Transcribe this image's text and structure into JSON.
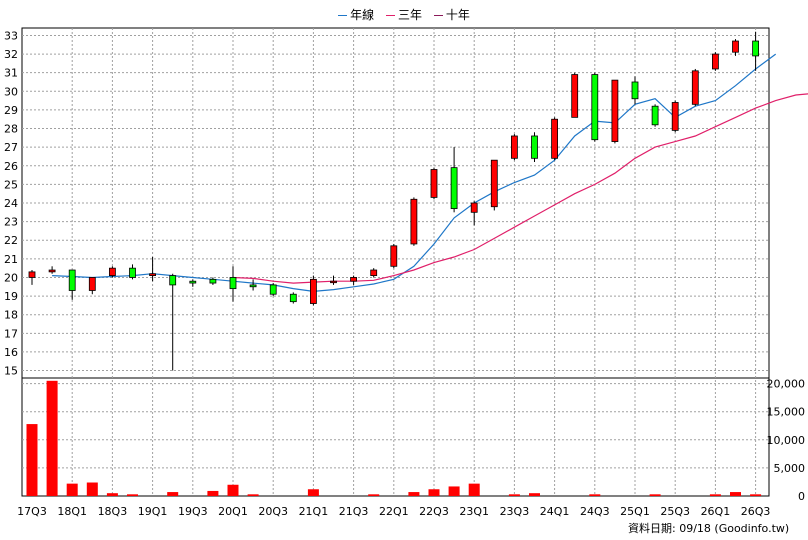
{
  "legend": [
    {
      "label": "年線",
      "color": "#1f77c8"
    },
    {
      "label": "三年",
      "color": "#e0206a"
    },
    {
      "label": "十年",
      "color": "#8b1a5a"
    }
  ],
  "source_note": "資料日期: 09/18  (Goodinfo.tw)",
  "chart_data": {
    "type": "candlestick",
    "price_axis": {
      "ylim": [
        14.6,
        33.4
      ],
      "ticks": [
        15,
        16,
        17,
        18,
        19,
        20,
        21,
        22,
        23,
        24,
        25,
        26,
        27,
        28,
        29,
        30,
        31,
        32,
        33
      ],
      "grid": true
    },
    "volume_axis": {
      "ylim": [
        0,
        21000
      ],
      "ticks": [
        0,
        5000,
        10000,
        15000,
        20000
      ],
      "tick_labels": [
        "0",
        "5,000",
        "10,000",
        "15,000",
        "20,000"
      ],
      "position": "right"
    },
    "x_tick_labels": [
      "17Q3",
      "18Q1",
      "18Q3",
      "19Q1",
      "19Q3",
      "20Q1",
      "20Q3",
      "21Q1",
      "21Q3",
      "22Q1",
      "22Q3",
      "23Q1",
      "23Q3",
      "24Q1",
      "24Q3",
      "25Q1",
      "25Q3",
      "26Q1",
      "26Q3"
    ],
    "candle_colors": {
      "up": "#ff0000",
      "down": "#00ff00",
      "outline": "#000000"
    },
    "volume_color": "#ff0000",
    "candles": [
      {
        "o": 20.0,
        "h": 20.4,
        "l": 19.6,
        "c": 20.3
      },
      {
        "o": 20.3,
        "h": 20.6,
        "l": 20.2,
        "c": 20.4
      },
      {
        "o": 20.4,
        "h": 20.4,
        "l": 18.8,
        "c": 19.3
      },
      {
        "o": 19.3,
        "h": 20.0,
        "l": 19.1,
        "c": 20.0
      },
      {
        "o": 20.1,
        "h": 20.6,
        "l": 20.0,
        "c": 20.5
      },
      {
        "o": 20.5,
        "h": 20.7,
        "l": 19.9,
        "c": 20.0
      },
      {
        "o": 20.1,
        "h": 21.1,
        "l": 19.8,
        "c": 20.2
      },
      {
        "o": 20.1,
        "h": 20.2,
        "l": 15.0,
        "c": 19.6
      },
      {
        "o": 19.8,
        "h": 19.9,
        "l": 19.5,
        "c": 19.7
      },
      {
        "o": 19.9,
        "h": 20.0,
        "l": 19.6,
        "c": 19.7
      },
      {
        "o": 20.0,
        "h": 20.6,
        "l": 18.7,
        "c": 19.4
      },
      {
        "o": 19.6,
        "h": 19.9,
        "l": 19.3,
        "c": 19.5
      },
      {
        "o": 19.6,
        "h": 19.7,
        "l": 19.0,
        "c": 19.1
      },
      {
        "o": 19.1,
        "h": 19.2,
        "l": 18.6,
        "c": 18.7
      },
      {
        "o": 18.6,
        "h": 20.1,
        "l": 18.5,
        "c": 19.9
      },
      {
        "o": 19.8,
        "h": 20.1,
        "l": 19.6,
        "c": 19.8
      },
      {
        "o": 19.8,
        "h": 20.1,
        "l": 19.6,
        "c": 20.0
      },
      {
        "o": 20.1,
        "h": 20.5,
        "l": 20.0,
        "c": 20.4
      },
      {
        "o": 20.6,
        "h": 21.8,
        "l": 20.5,
        "c": 21.7
      },
      {
        "o": 21.8,
        "h": 24.3,
        "l": 21.7,
        "c": 24.2
      },
      {
        "o": 24.3,
        "h": 25.9,
        "l": 24.2,
        "c": 25.8
      },
      {
        "o": 25.9,
        "h": 27.0,
        "l": 23.5,
        "c": 23.7
      },
      {
        "o": 23.5,
        "h": 24.1,
        "l": 22.8,
        "c": 24.0
      },
      {
        "o": 23.8,
        "h": 26.3,
        "l": 23.6,
        "c": 26.3
      },
      {
        "o": 26.4,
        "h": 27.7,
        "l": 26.3,
        "c": 27.6
      },
      {
        "o": 27.6,
        "h": 27.8,
        "l": 26.2,
        "c": 26.4
      },
      {
        "o": 26.4,
        "h": 28.6,
        "l": 26.3,
        "c": 28.5
      },
      {
        "o": 28.6,
        "h": 31.0,
        "l": 28.6,
        "c": 30.9
      },
      {
        "o": 30.9,
        "h": 31.0,
        "l": 27.3,
        "c": 27.4
      },
      {
        "o": 27.3,
        "h": 30.6,
        "l": 27.2,
        "c": 30.6
      },
      {
        "o": 30.5,
        "h": 30.8,
        "l": 29.3,
        "c": 29.6
      },
      {
        "o": 29.2,
        "h": 29.3,
        "l": 28.1,
        "c": 28.2
      },
      {
        "o": 27.9,
        "h": 29.5,
        "l": 27.8,
        "c": 29.4
      },
      {
        "o": 29.3,
        "h": 31.2,
        "l": 29.2,
        "c": 31.1
      },
      {
        "o": 31.2,
        "h": 32.1,
        "l": 31.1,
        "c": 32.0
      },
      {
        "o": 32.1,
        "h": 32.8,
        "l": 31.9,
        "c": 32.7
      },
      {
        "o": 32.7,
        "h": 33.2,
        "l": 31.1,
        "c": 31.9
      }
    ],
    "volumes": [
      12800,
      20500,
      2200,
      2400,
      500,
      300,
      0,
      700,
      0,
      900,
      2000,
      300,
      0,
      0,
      1200,
      0,
      0,
      300,
      0,
      700,
      1200,
      1700,
      2200,
      0,
      300,
      500,
      0,
      0,
      300,
      0,
      0,
      300,
      0,
      0,
      300,
      700,
      300
    ],
    "series": [
      {
        "name": "年線",
        "color": "#1f77c8",
        "start_index": 1,
        "values": [
          20.1,
          20.05,
          20.0,
          20.05,
          20.1,
          20.2,
          20.1,
          20.0,
          19.9,
          19.8,
          19.7,
          19.6,
          19.4,
          19.25,
          19.35,
          19.5,
          19.65,
          19.9,
          20.6,
          21.8,
          23.2,
          24.0,
          24.6,
          25.1,
          25.5,
          26.3,
          27.6,
          28.4,
          28.3,
          29.3,
          29.6,
          28.6,
          29.2,
          29.5,
          30.3,
          31.2,
          32.0
        ]
      },
      {
        "name": "三年",
        "color": "#e0206a",
        "start_index": 10,
        "values": [
          20.0,
          19.95,
          19.8,
          19.7,
          19.75,
          19.8,
          19.8,
          19.85,
          20.1,
          20.4,
          20.8,
          21.1,
          21.5,
          22.1,
          22.7,
          23.3,
          23.9,
          24.5,
          25.0,
          25.6,
          26.4,
          27.0,
          27.3,
          27.6,
          28.1,
          28.6,
          29.1,
          29.5,
          29.8,
          29.9
        ]
      }
    ]
  }
}
